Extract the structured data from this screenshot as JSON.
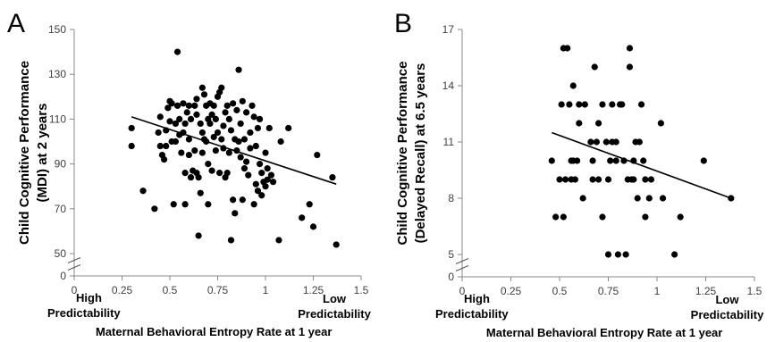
{
  "chart_data": [
    {
      "panel": "A",
      "type": "scatter",
      "xlabel": "Maternal Behavioral Entropy Rate at 1 year",
      "ylabel_lines": [
        "Child Cognitive Performance",
        "(MDI) at 2 years"
      ],
      "annotation_left": [
        "High",
        "Predictability"
      ],
      "annotation_right": [
        "Low",
        "Predictability"
      ],
      "xlim": [
        0,
        1.5
      ],
      "ylim": [
        50,
        150
      ],
      "x_ticks": [
        0,
        0.25,
        0.5,
        0.75,
        1,
        1.25,
        1.5
      ],
      "x_tick_labels": [
        "0",
        "0.25",
        "0.5",
        "0.75",
        "1",
        "1.25",
        "1.5"
      ],
      "y_ticks": [
        50,
        70,
        90,
        110,
        130,
        150
      ],
      "y_tick_labels": [
        "50",
        "70",
        "90",
        "110",
        "130",
        "150"
      ],
      "y_zero_label": "0",
      "axis_break": true,
      "trend_line": {
        "x": [
          0.3,
          1.37
        ],
        "y": [
          111,
          81
        ]
      },
      "points": [
        [
          0.3,
          106
        ],
        [
          0.3,
          98
        ],
        [
          0.36,
          78
        ],
        [
          0.42,
          70
        ],
        [
          0.44,
          104
        ],
        [
          0.45,
          111
        ],
        [
          0.45,
          98
        ],
        [
          0.46,
          94
        ],
        [
          0.47,
          92
        ],
        [
          0.48,
          98
        ],
        [
          0.48,
          105
        ],
        [
          0.49,
          115
        ],
        [
          0.5,
          118
        ],
        [
          0.5,
          109
        ],
        [
          0.51,
          117
        ],
        [
          0.51,
          100
        ],
        [
          0.52,
          72
        ],
        [
          0.53,
          100
        ],
        [
          0.53,
          108
        ],
        [
          0.54,
          140
        ],
        [
          0.54,
          116
        ],
        [
          0.55,
          110
        ],
        [
          0.55,
          103
        ],
        [
          0.56,
          95
        ],
        [
          0.57,
          117
        ],
        [
          0.57,
          104
        ],
        [
          0.58,
          86
        ],
        [
          0.58,
          72
        ],
        [
          0.58,
          108
        ],
        [
          0.59,
          113
        ],
        [
          0.6,
          116
        ],
        [
          0.6,
          101
        ],
        [
          0.6,
          94
        ],
        [
          0.61,
          110
        ],
        [
          0.61,
          84
        ],
        [
          0.62,
          87
        ],
        [
          0.63,
          116
        ],
        [
          0.63,
          96
        ],
        [
          0.64,
          119
        ],
        [
          0.64,
          112
        ],
        [
          0.64,
          86
        ],
        [
          0.65,
          84
        ],
        [
          0.65,
          58
        ],
        [
          0.66,
          108
        ],
        [
          0.66,
          77
        ],
        [
          0.67,
          124
        ],
        [
          0.67,
          104
        ],
        [
          0.67,
          95
        ],
        [
          0.68,
          121
        ],
        [
          0.68,
          101
        ],
        [
          0.69,
          116
        ],
        [
          0.69,
          100
        ],
        [
          0.7,
          110
        ],
        [
          0.7,
          90
        ],
        [
          0.7,
          72
        ],
        [
          0.71,
          117
        ],
        [
          0.71,
          108
        ],
        [
          0.72,
          87
        ],
        [
          0.72,
          112
        ],
        [
          0.73,
          102
        ],
        [
          0.73,
          116
        ],
        [
          0.74,
          96
        ],
        [
          0.74,
          110
        ],
        [
          0.75,
          104
        ],
        [
          0.75,
          120
        ],
        [
          0.76,
          86
        ],
        [
          0.76,
          122
        ],
        [
          0.77,
          124
        ],
        [
          0.77,
          101
        ],
        [
          0.78,
          97
        ],
        [
          0.78,
          107
        ],
        [
          0.79,
          84
        ],
        [
          0.79,
          113
        ],
        [
          0.8,
          116
        ],
        [
          0.8,
          86
        ],
        [
          0.81,
          110
        ],
        [
          0.81,
          95
        ],
        [
          0.82,
          105
        ],
        [
          0.82,
          56
        ],
        [
          0.83,
          117
        ],
        [
          0.83,
          74
        ],
        [
          0.84,
          101
        ],
        [
          0.84,
          68
        ],
        [
          0.85,
          96
        ],
        [
          0.85,
          114
        ],
        [
          0.86,
          132
        ],
        [
          0.86,
          100
        ],
        [
          0.87,
          93
        ],
        [
          0.87,
          108
        ],
        [
          0.88,
          74
        ],
        [
          0.88,
          118
        ],
        [
          0.89,
          101
        ],
        [
          0.89,
          88
        ],
        [
          0.9,
          91
        ],
        [
          0.9,
          113
        ],
        [
          0.91,
          85
        ],
        [
          0.92,
          104
        ],
        [
          0.92,
          97
        ],
        [
          0.93,
          116
        ],
        [
          0.94,
          72
        ],
        [
          0.94,
          111
        ],
        [
          0.95,
          98
        ],
        [
          0.95,
          81
        ],
        [
          0.96,
          106
        ],
        [
          0.96,
          78
        ],
        [
          0.97,
          110
        ],
        [
          0.97,
          90
        ],
        [
          0.98,
          76
        ],
        [
          0.98,
          86
        ],
        [
          0.99,
          82
        ],
        [
          1.0,
          80
        ],
        [
          1.0,
          95
        ],
        [
          1.01,
          88
        ],
        [
          1.01,
          83
        ],
        [
          1.02,
          106
        ],
        [
          1.03,
          85
        ],
        [
          1.04,
          82
        ],
        [
          1.07,
          56
        ],
        [
          1.08,
          100
        ],
        [
          1.12,
          106
        ],
        [
          1.19,
          66
        ],
        [
          1.23,
          72
        ],
        [
          1.25,
          62
        ],
        [
          1.27,
          94
        ],
        [
          1.35,
          84
        ],
        [
          1.37,
          54
        ]
      ]
    },
    {
      "panel": "B",
      "type": "scatter",
      "xlabel": "Maternal Behavioral Entropy Rate at 1 year",
      "ylabel_lines": [
        "Child Cognitive Performance",
        "(Delayed Recall) at 6.5 years"
      ],
      "annotation_left": [
        "High",
        "Predictability"
      ],
      "annotation_right": [
        "Low",
        "Predictability"
      ],
      "xlim": [
        0,
        1.5
      ],
      "ylim": [
        5,
        17
      ],
      "x_ticks": [
        0,
        0.25,
        0.5,
        0.75,
        1,
        1.25,
        1.5
      ],
      "x_tick_labels": [
        "0",
        "0.25",
        "0.5",
        "0.75",
        "1",
        "1.25",
        "1.5"
      ],
      "y_ticks": [
        5,
        8,
        11,
        14,
        17
      ],
      "y_tick_labels": [
        "5",
        "8",
        "11",
        "14",
        "17"
      ],
      "y_zero_label": "0",
      "axis_break": true,
      "trend_line": {
        "x": [
          0.46,
          1.38
        ],
        "y": [
          11.5,
          8
        ]
      },
      "points": [
        [
          0.46,
          10
        ],
        [
          0.48,
          7
        ],
        [
          0.5,
          9
        ],
        [
          0.51,
          13
        ],
        [
          0.52,
          16
        ],
        [
          0.52,
          7
        ],
        [
          0.53,
          9
        ],
        [
          0.54,
          16
        ],
        [
          0.55,
          13
        ],
        [
          0.56,
          10
        ],
        [
          0.56,
          9
        ],
        [
          0.57,
          14
        ],
        [
          0.57,
          10
        ],
        [
          0.58,
          9
        ],
        [
          0.59,
          10
        ],
        [
          0.6,
          13
        ],
        [
          0.6,
          12
        ],
        [
          0.62,
          8
        ],
        [
          0.63,
          13
        ],
        [
          0.66,
          11
        ],
        [
          0.67,
          10
        ],
        [
          0.67,
          9
        ],
        [
          0.68,
          15
        ],
        [
          0.69,
          11
        ],
        [
          0.7,
          12
        ],
        [
          0.7,
          9
        ],
        [
          0.72,
          13
        ],
        [
          0.72,
          7
        ],
        [
          0.74,
          11
        ],
        [
          0.75,
          9
        ],
        [
          0.75,
          5
        ],
        [
          0.76,
          10
        ],
        [
          0.77,
          13
        ],
        [
          0.77,
          11
        ],
        [
          0.79,
          11
        ],
        [
          0.79,
          10
        ],
        [
          0.8,
          5
        ],
        [
          0.81,
          13
        ],
        [
          0.82,
          13
        ],
        [
          0.83,
          10
        ],
        [
          0.84,
          5
        ],
        [
          0.85,
          9
        ],
        [
          0.86,
          15
        ],
        [
          0.86,
          16
        ],
        [
          0.87,
          9
        ],
        [
          0.88,
          10
        ],
        [
          0.88,
          9
        ],
        [
          0.89,
          11
        ],
        [
          0.9,
          8
        ],
        [
          0.91,
          11
        ],
        [
          0.92,
          13
        ],
        [
          0.93,
          10
        ],
        [
          0.94,
          9
        ],
        [
          0.94,
          7
        ],
        [
          0.96,
          8
        ],
        [
          0.97,
          9
        ],
        [
          1.02,
          12
        ],
        [
          1.03,
          8
        ],
        [
          1.09,
          5
        ],
        [
          1.12,
          7
        ],
        [
          1.24,
          10
        ],
        [
          1.38,
          8
        ]
      ]
    }
  ]
}
